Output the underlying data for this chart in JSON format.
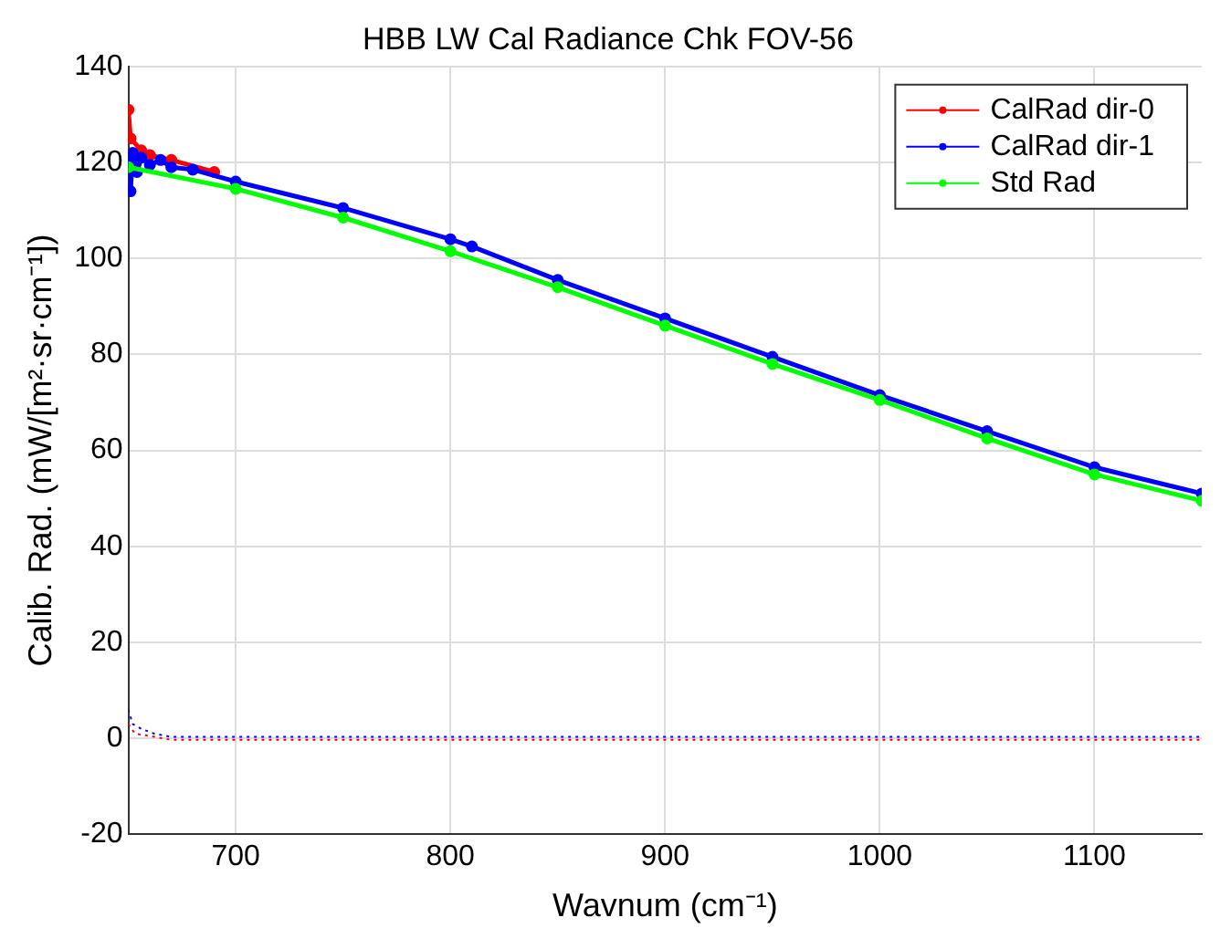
{
  "chart_data": {
    "type": "line",
    "title": "HBB LW Cal Radiance Chk FOV-56",
    "xlabel": "Wavnum (cm⁻¹)",
    "ylabel": "Calib. Rad. (mW/[m²·sr·cm⁻¹])",
    "xlim": [
      650,
      1150
    ],
    "xticks": [
      700,
      800,
      900,
      1000,
      1100
    ],
    "ylim": [
      -20,
      140
    ],
    "yticks": [
      -20,
      0,
      20,
      40,
      60,
      80,
      100,
      120,
      140
    ],
    "grid": true,
    "legend": "top right",
    "marker": "circle",
    "line_style": "solid",
    "series": [
      {
        "name": "CalRad dir-0",
        "color": "#ff0000",
        "x": [
          650,
          651,
          656,
          660,
          670,
          690
        ],
        "values": [
          131,
          125,
          122.5,
          121.5,
          120.5,
          118
        ]
      },
      {
        "name": "CalRad dir-1",
        "color": "#0000ff",
        "x": [
          650,
          651,
          652,
          654,
          656,
          660,
          665,
          670,
          680,
          700,
          750,
          800,
          810,
          850,
          900,
          950,
          1000,
          1050,
          1100,
          1150
        ],
        "values": [
          121,
          114,
          122,
          118,
          121,
          119.5,
          120.5,
          119,
          118.5,
          116,
          110.5,
          104,
          102.5,
          95.5,
          87.5,
          79.5,
          71.5,
          64,
          56.5,
          51
        ]
      },
      {
        "name": "Std Rad",
        "color": "#00ff00",
        "x": [
          650,
          700,
          750,
          800,
          850,
          900,
          950,
          1000,
          1050,
          1100,
          1150
        ],
        "values": [
          119,
          114.5,
          108.5,
          101.5,
          94,
          86,
          78,
          70.5,
          62.5,
          55,
          49.5
        ]
      },
      {
        "color": "#ff0000",
        "line_style": "dotted",
        "marker": "none",
        "x": [
          650,
          653,
          660,
          670,
          700,
          800,
          900,
          1000,
          1100,
          1150
        ],
        "values": [
          3,
          1,
          0.5,
          -0.3,
          -0.3,
          -0.3,
          -0.3,
          -0.3,
          -0.3,
          -0.3
        ]
      },
      {
        "color": "#0000ff",
        "line_style": "dotted",
        "marker": "none",
        "x": [
          650,
          652,
          656,
          662,
          670,
          680,
          800,
          900,
          1000,
          1100,
          1150
        ],
        "values": [
          6,
          3,
          2,
          1,
          0.3,
          0.3,
          0.3,
          0.3,
          0.3,
          0.3,
          0.3
        ]
      }
    ]
  }
}
